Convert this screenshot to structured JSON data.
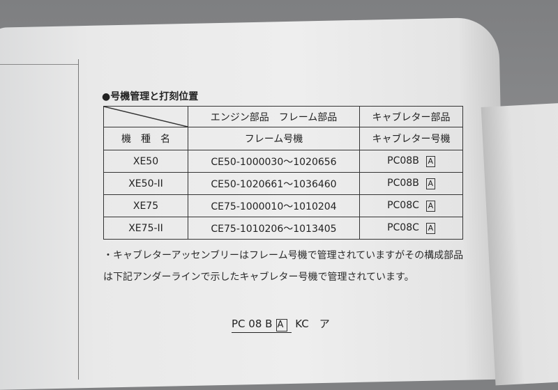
{
  "section_title": "●号機管理と打刻位置",
  "table": {
    "header_row1": [
      "エンジン部品　フレーム部品",
      "キャブレター部品"
    ],
    "header_row2": [
      "機　種　名",
      "フレーム号機",
      "キャブレター号機"
    ],
    "rows": [
      {
        "model": "XE50",
        "frame": "CE50-1000030～1020656",
        "carb": "PC08B",
        "mark": "A"
      },
      {
        "model": "XE50-II",
        "frame": "CE50-1020661～1036460",
        "carb": "PC08B",
        "mark": "A"
      },
      {
        "model": "XE75",
        "frame": "CE75-1000010～1010204",
        "carb": "PC08C",
        "mark": "A"
      },
      {
        "model": "XE75-II",
        "frame": "CE75-1010206～1013405",
        "carb": "PC08C",
        "mark": "A"
      }
    ]
  },
  "note": "・キャブレターアッセンブリーはフレーム号機で管理されていますがその構成部品は下記アンダーラインで示したキャブレター号機で管理されています。",
  "code_example": {
    "underlined": "PC 08 B",
    "boxed": "A",
    "rest": "KC　ア"
  }
}
